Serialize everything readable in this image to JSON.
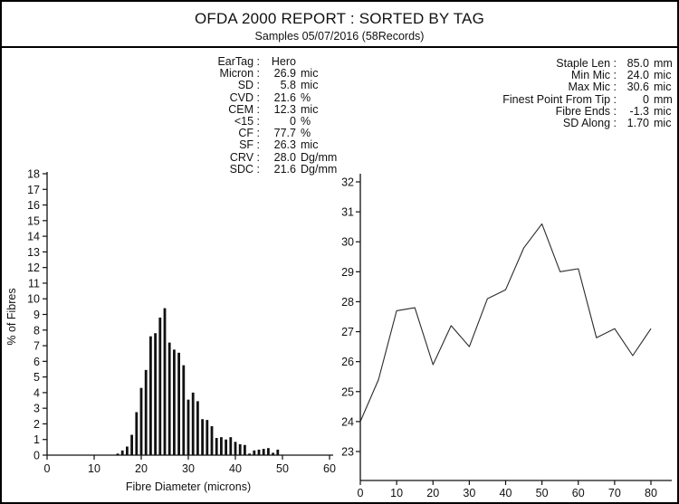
{
  "header": {
    "title": "OFDA 2000 REPORT : SORTED BY TAG",
    "subtitle": "Samples 05/07/2016 (58Records)"
  },
  "stats_left": {
    "rows": [
      {
        "label": "EarTag",
        "value": "Hero",
        "unit": ""
      },
      {
        "label": "Micron",
        "value": "26.9",
        "unit": "mic"
      },
      {
        "label": "SD",
        "value": "5.8",
        "unit": "mic"
      },
      {
        "label": "CVD",
        "value": "21.6",
        "unit": "%"
      },
      {
        "label": "CEM",
        "value": "12.3",
        "unit": "mic"
      },
      {
        "label": "<15",
        "value": "0",
        "unit": "%"
      },
      {
        "label": "CF",
        "value": "77.7",
        "unit": "%"
      },
      {
        "label": "SF",
        "value": "26.3",
        "unit": "mic"
      },
      {
        "label": "CRV",
        "value": "28.0",
        "unit": "Dg/mm"
      },
      {
        "label": "SDC",
        "value": "21.6",
        "unit": "Dg/mm"
      }
    ]
  },
  "stats_right": {
    "rows": [
      {
        "label": "Staple Len",
        "value": "85.0",
        "unit": "mm"
      },
      {
        "label": "Min Mic",
        "value": "24.0",
        "unit": "mic"
      },
      {
        "label": "Max Mic",
        "value": "30.6",
        "unit": "mic"
      },
      {
        "label": "Finest Point From Tip",
        "value": "0",
        "unit": "mm"
      },
      {
        "label": "Fibre Ends",
        "value": "-1.3",
        "unit": "mic"
      },
      {
        "label": "SD Along",
        "value": "1.70",
        "unit": "mic"
      }
    ]
  },
  "chart_data": [
    {
      "type": "bar",
      "title": "",
      "xlabel": "Fibre Diameter (microns)",
      "ylabel": "% of Fibres",
      "xlim": [
        0,
        60
      ],
      "ylim": [
        0,
        18
      ],
      "x_ticks": [
        0,
        10,
        20,
        30,
        40,
        50,
        60
      ],
      "y_ticks": [
        0,
        1,
        2,
        3,
        4,
        5,
        6,
        7,
        8,
        9,
        10,
        11,
        12,
        13,
        14,
        15,
        16,
        17,
        18
      ],
      "grid": false,
      "categories": [
        15,
        16,
        17,
        18,
        19,
        20,
        21,
        22,
        23,
        24,
        25,
        26,
        27,
        28,
        29,
        30,
        31,
        32,
        33,
        34,
        35,
        36,
        37,
        38,
        39,
        40,
        41,
        42,
        43,
        44,
        45,
        46,
        47,
        48,
        49
      ],
      "values": [
        0.1,
        0.3,
        0.55,
        1.3,
        2.75,
        4.3,
        5.45,
        7.6,
        7.8,
        8.8,
        9.4,
        7.2,
        6.75,
        6.55,
        5.75,
        3.55,
        4.0,
        3.45,
        2.3,
        2.25,
        1.85,
        1.1,
        1.15,
        1.0,
        1.15,
        0.85,
        0.7,
        0.65,
        0.1,
        0.3,
        0.35,
        0.4,
        0.45,
        0.15,
        0.35
      ]
    },
    {
      "type": "line",
      "title": "",
      "xlabel": "",
      "ylabel": "",
      "xlim": [
        0,
        85.7
      ],
      "ylim": [
        22,
        32.35
      ],
      "x_ticks": [
        0,
        10,
        20,
        30,
        40,
        50,
        60,
        70,
        80
      ],
      "y_ticks": [
        23,
        24,
        25,
        26,
        27,
        28,
        29,
        30,
        31,
        32
      ],
      "grid": false,
      "x": [
        0,
        5,
        10,
        15,
        20,
        25,
        30,
        35,
        40,
        45,
        50,
        55,
        60,
        65,
        70,
        75,
        80
      ],
      "y": [
        24.0,
        25.4,
        27.7,
        27.8,
        25.9,
        27.2,
        26.5,
        28.1,
        28.4,
        29.8,
        30.6,
        29.0,
        29.1,
        26.8,
        27.1,
        26.2,
        27.1
      ]
    }
  ],
  "colors": {
    "ink": "#111111",
    "line_stroke": "#2b2b2b",
    "paper": "#ffffff"
  }
}
